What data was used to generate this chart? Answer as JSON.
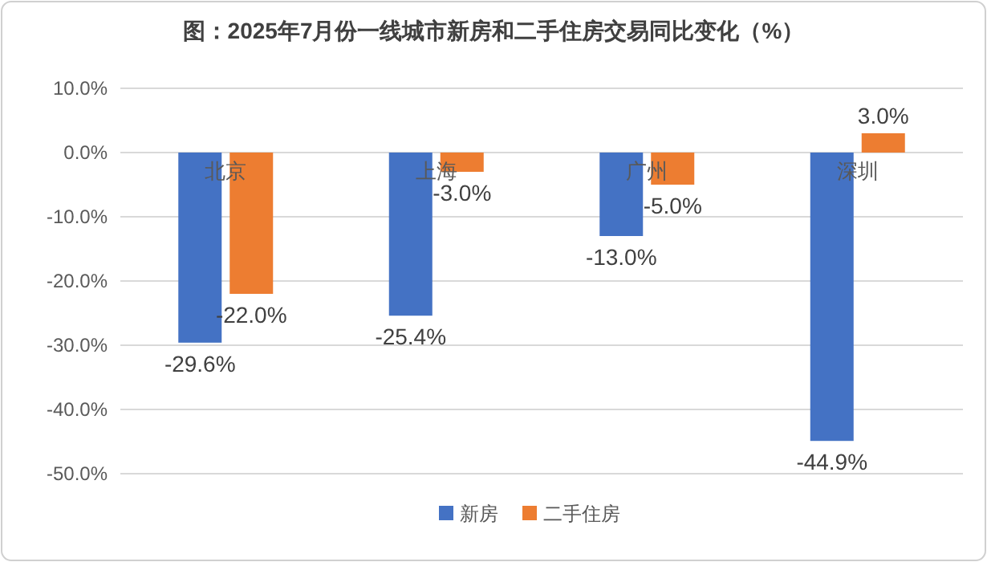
{
  "chart_data": {
    "type": "bar",
    "title": "图：2025年7月份一线城市新房和二手住房交易同比变化（%）",
    "categories": [
      "北京",
      "上海",
      "广州",
      "深圳"
    ],
    "series": [
      {
        "name": "新房",
        "color": "#4472c4",
        "values": [
          -29.6,
          -25.4,
          -13.0,
          -44.9
        ],
        "value_labels": [
          "-29.6%",
          "-25.4%",
          "-13.0%",
          "-44.9%"
        ]
      },
      {
        "name": "二手住房",
        "color": "#ed7d31",
        "values": [
          -22.0,
          -3.0,
          -5.0,
          3.0
        ],
        "value_labels": [
          "-22.0%",
          "-3.0%",
          "-5.0%",
          "3.0%"
        ]
      }
    ],
    "ylim": [
      -50,
      10
    ],
    "yticks": [
      {
        "value": -50,
        "label": "-50.0%"
      },
      {
        "value": -40,
        "label": "-40.0%"
      },
      {
        "value": -30,
        "label": "-30.0%"
      },
      {
        "value": -20,
        "label": "-20.0%"
      },
      {
        "value": -10,
        "label": "-10.0%"
      },
      {
        "value": 0,
        "label": "0.0%"
      },
      {
        "value": 10,
        "label": "10.0%"
      }
    ],
    "grid": "y",
    "legend": "bottom"
  }
}
